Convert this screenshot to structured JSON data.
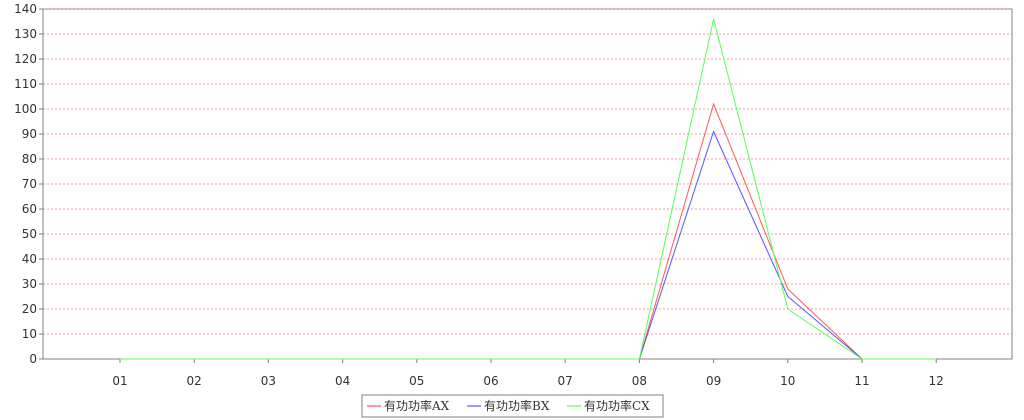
{
  "chart_data": {
    "type": "line",
    "title": "",
    "xlabel": "",
    "ylabel": "",
    "categories": [
      "01",
      "02",
      "03",
      "04",
      "05",
      "06",
      "07",
      "08",
      "09",
      "10",
      "11",
      "12"
    ],
    "ylim": [
      0,
      140
    ],
    "yticks": [
      0,
      10,
      20,
      30,
      40,
      50,
      60,
      70,
      80,
      90,
      100,
      110,
      120,
      130,
      140
    ],
    "grid": true,
    "legend_position": "bottom",
    "series": [
      {
        "name": "有功功率AX",
        "color": "#ff5555",
        "values": [
          0,
          0,
          0,
          0,
          0,
          0,
          0,
          0,
          102,
          28,
          0,
          0
        ]
      },
      {
        "name": "有功功率BX",
        "color": "#5555ff",
        "values": [
          0,
          0,
          0,
          0,
          0,
          0,
          0,
          0,
          91,
          25,
          0,
          0
        ]
      },
      {
        "name": "有功功率CX",
        "color": "#55ff55",
        "values": [
          0,
          0,
          0,
          0,
          0,
          0,
          0,
          0,
          136,
          20,
          0,
          0
        ]
      }
    ]
  }
}
